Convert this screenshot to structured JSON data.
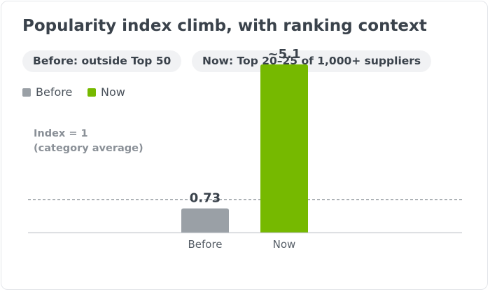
{
  "title": "Popularity index climb, with ranking context",
  "pills": [
    "Before: outside Top 50",
    "Now: Top 20–25 of 1,000+ suppliers"
  ],
  "legend": [
    {
      "label": "Before",
      "color": "#9aa0a6"
    },
    {
      "label": "Now",
      "color": "#76b900"
    }
  ],
  "chart_data": {
    "type": "bar",
    "categories": [
      "Before",
      "Now"
    ],
    "values": [
      0.73,
      5.1
    ],
    "value_labels": [
      "0.73",
      "~5.1"
    ],
    "colors": [
      "#9aa0a6",
      "#76b900"
    ],
    "reference_line": {
      "value": 1,
      "label_lines": [
        "Index = 1",
        "(category average)"
      ]
    },
    "ylim": [
      0,
      6.1
    ],
    "grid": false,
    "legend_position": "top-left"
  }
}
